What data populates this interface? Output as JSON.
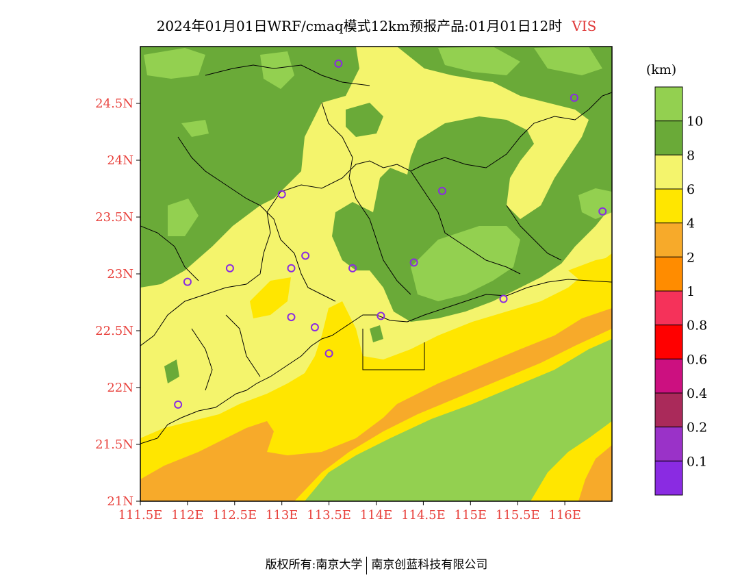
{
  "title": {
    "main": "2024年01月01日WRF/cmaq模式12km预报产品:01月01日12时",
    "variable": "VIS"
  },
  "map": {
    "lon_ticks": [
      "111.5E",
      "112E",
      "112.5E",
      "113E",
      "113.5E",
      "114E",
      "114.5E",
      "115E",
      "115.5E",
      "116E"
    ],
    "lat_ticks": [
      "21N",
      "21.5N",
      "22N",
      "22.5N",
      "23N",
      "23.5N",
      "24N",
      "24.5N"
    ],
    "lon_range": [
      111.5,
      116.5
    ],
    "lat_range": [
      21.0,
      25.0
    ],
    "label_color": "#e8413c",
    "stations": [
      {
        "lon": 113.6,
        "lat": 24.85
      },
      {
        "lon": 116.1,
        "lat": 24.55
      },
      {
        "lon": 113.0,
        "lat": 23.7
      },
      {
        "lon": 114.7,
        "lat": 23.73
      },
      {
        "lon": 116.4,
        "lat": 23.55
      },
      {
        "lon": 113.25,
        "lat": 23.16
      },
      {
        "lon": 112.45,
        "lat": 23.05
      },
      {
        "lon": 113.1,
        "lat": 23.05
      },
      {
        "lon": 113.75,
        "lat": 23.05
      },
      {
        "lon": 114.4,
        "lat": 23.1
      },
      {
        "lon": 112.0,
        "lat": 22.93
      },
      {
        "lon": 115.35,
        "lat": 22.78
      },
      {
        "lon": 113.1,
        "lat": 22.62
      },
      {
        "lon": 114.05,
        "lat": 22.63
      },
      {
        "lon": 113.35,
        "lat": 22.53
      },
      {
        "lon": 113.5,
        "lat": 22.3
      },
      {
        "lon": 111.9,
        "lat": 21.85
      }
    ]
  },
  "colorbar": {
    "unit": "(km)",
    "labels": [
      "10",
      "8",
      "6",
      "4",
      "2",
      "1",
      "0.8",
      "0.6",
      "0.4",
      "0.2",
      "0.1"
    ],
    "colors": [
      "#93d050",
      "#6aaa38",
      "#f4f46c",
      "#ffe600",
      "#f7aa2a",
      "#ff8c00",
      "#f5325a",
      "#ff0000",
      "#cc1080",
      "#aa2a5a",
      "#9a32c8",
      "#8a2be2"
    ]
  },
  "footer": {
    "left": "版权所有:南京大学",
    "right": "南京创蓝科技有限公司"
  }
}
